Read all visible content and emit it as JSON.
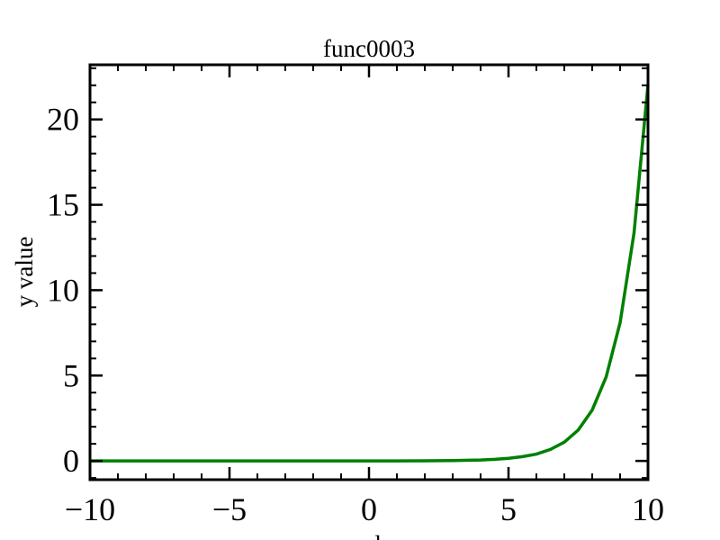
{
  "chart_data": {
    "type": "line",
    "title": "func0003",
    "x_label": "x value",
    "y_label": "y value",
    "x": [
      -10,
      -9,
      -8,
      -7,
      -6,
      -5,
      -4,
      -3,
      -2,
      -1,
      0,
      1,
      2,
      3,
      4,
      4.5,
      5,
      5.5,
      6,
      6.5,
      7,
      7.5,
      8,
      8.5,
      9,
      9.5,
      10
    ],
    "series": [
      {
        "color": "#008000",
        "values": [
          0,
          0,
          0,
          0,
          0,
          0,
          0,
          0,
          0,
          0,
          0,
          0,
          0.01,
          0.02,
          0.05,
          0.09,
          0.15,
          0.25,
          0.4,
          0.67,
          1.1,
          1.81,
          2.98,
          4.92,
          8.1,
          13.36,
          22.03
        ]
      }
    ],
    "xlim": [
      -10,
      10
    ],
    "ylim": [
      -1.1,
      23.2
    ],
    "xticks": [
      {
        "value": -10,
        "label": "−10"
      },
      {
        "value": -5,
        "label": "−5"
      },
      0,
      5,
      10
    ],
    "yticks": [
      0,
      5,
      10,
      15,
      20
    ],
    "grid": false
  }
}
